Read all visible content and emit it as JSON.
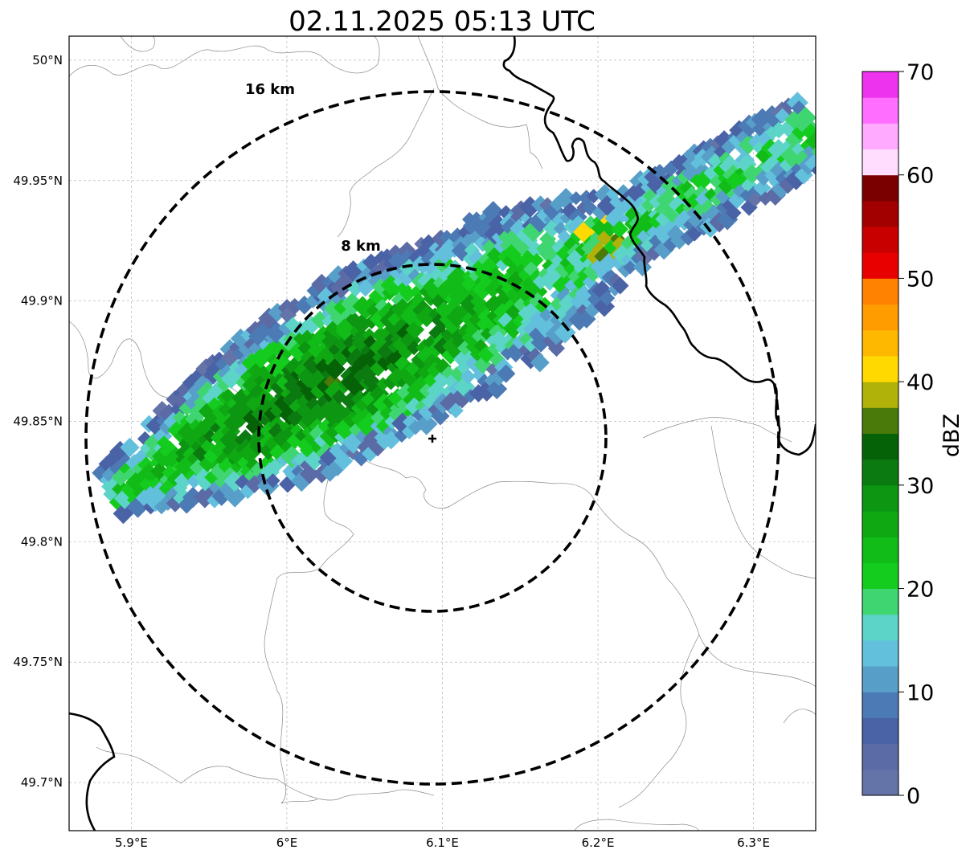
{
  "title": "02.11.2025 05:13 UTC",
  "map": {
    "lon_range": [
      5.86,
      6.34
    ],
    "lat_range": [
      49.68,
      50.01
    ],
    "lon_ticks": [
      {
        "value": 5.9,
        "label": "5.9°E"
      },
      {
        "value": 6.0,
        "label": "6°E"
      },
      {
        "value": 6.1,
        "label": "6.1°E"
      },
      {
        "value": 6.2,
        "label": "6.2°E"
      },
      {
        "value": 6.3,
        "label": "6.3°E"
      }
    ],
    "lat_ticks": [
      {
        "value": 50.0,
        "label": "50°N"
      },
      {
        "value": 49.95,
        "label": "49.95°N"
      },
      {
        "value": 49.9,
        "label": "49.9°N"
      },
      {
        "value": 49.85,
        "label": "49.85°N"
      },
      {
        "value": 49.8,
        "label": "49.8°N"
      },
      {
        "value": 49.75,
        "label": "49.75°N"
      },
      {
        "value": 49.7,
        "label": "49.7°N"
      }
    ],
    "radar_site": {
      "lon": 6.095,
      "lat": 49.843
    },
    "range_rings": [
      {
        "label": "8 km",
        "radius_km": 8
      },
      {
        "label": "16 km",
        "radius_km": 16
      }
    ]
  },
  "colorbar": {
    "label": "dBZ",
    "min": 0,
    "max": 70,
    "step": 2.5,
    "ticks": [
      {
        "value": 0,
        "label": "0"
      },
      {
        "value": 10,
        "label": "10"
      },
      {
        "value": 20,
        "label": "20"
      },
      {
        "value": 30,
        "label": "30"
      },
      {
        "value": 40,
        "label": "40"
      },
      {
        "value": 50,
        "label": "50"
      },
      {
        "value": 60,
        "label": "60"
      },
      {
        "value": 70,
        "label": "70"
      }
    ],
    "colors": [
      "#6474a8",
      "#5a6ba6",
      "#4a62a6",
      "#4c7ab4",
      "#579fc9",
      "#62c0dd",
      "#5dd4c8",
      "#3fd672",
      "#14cc1e",
      "#11bb18",
      "#0fa812",
      "#0c9612",
      "#0b7a10",
      "#066207",
      "#497a0a",
      "#b0b20a",
      "#ffd900",
      "#ffb800",
      "#ff9d00",
      "#ff8300",
      "#e80000",
      "#c80000",
      "#a20000",
      "#7a0000",
      "#ffddff",
      "#ffaaff",
      "#ff6eff",
      "#ee33ee"
    ]
  }
}
